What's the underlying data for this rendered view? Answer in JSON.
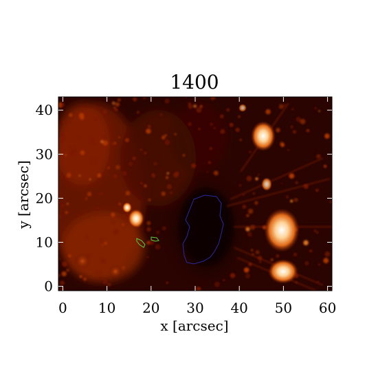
{
  "title": "1400",
  "x_axis": {
    "label": "x [arcsec]",
    "range": [
      -1,
      61
    ],
    "ticks": [
      0,
      10,
      20,
      30,
      40,
      50,
      60
    ],
    "tick_labels": [
      "0",
      "10",
      "20",
      "30",
      "40",
      "50",
      "60"
    ]
  },
  "y_axis": {
    "label": "y [arcsec]",
    "range": [
      -1,
      43
    ],
    "ticks": [
      0,
      10,
      20,
      30,
      40
    ],
    "tick_labels": [
      "0",
      "10",
      "20",
      "30",
      "40"
    ]
  },
  "colormap": [
    "#000000",
    "#3a0500",
    "#7a1800",
    "#b63a05",
    "#e57a25",
    "#ffc880",
    "#ffffff"
  ],
  "contours": [
    {
      "name": "umbra",
      "color": "#2a2aa0"
    },
    {
      "name": "small-region-a",
      "color": "#5ccd3a"
    },
    {
      "name": "small-region-b",
      "color": "#5ccd3a"
    }
  ]
}
